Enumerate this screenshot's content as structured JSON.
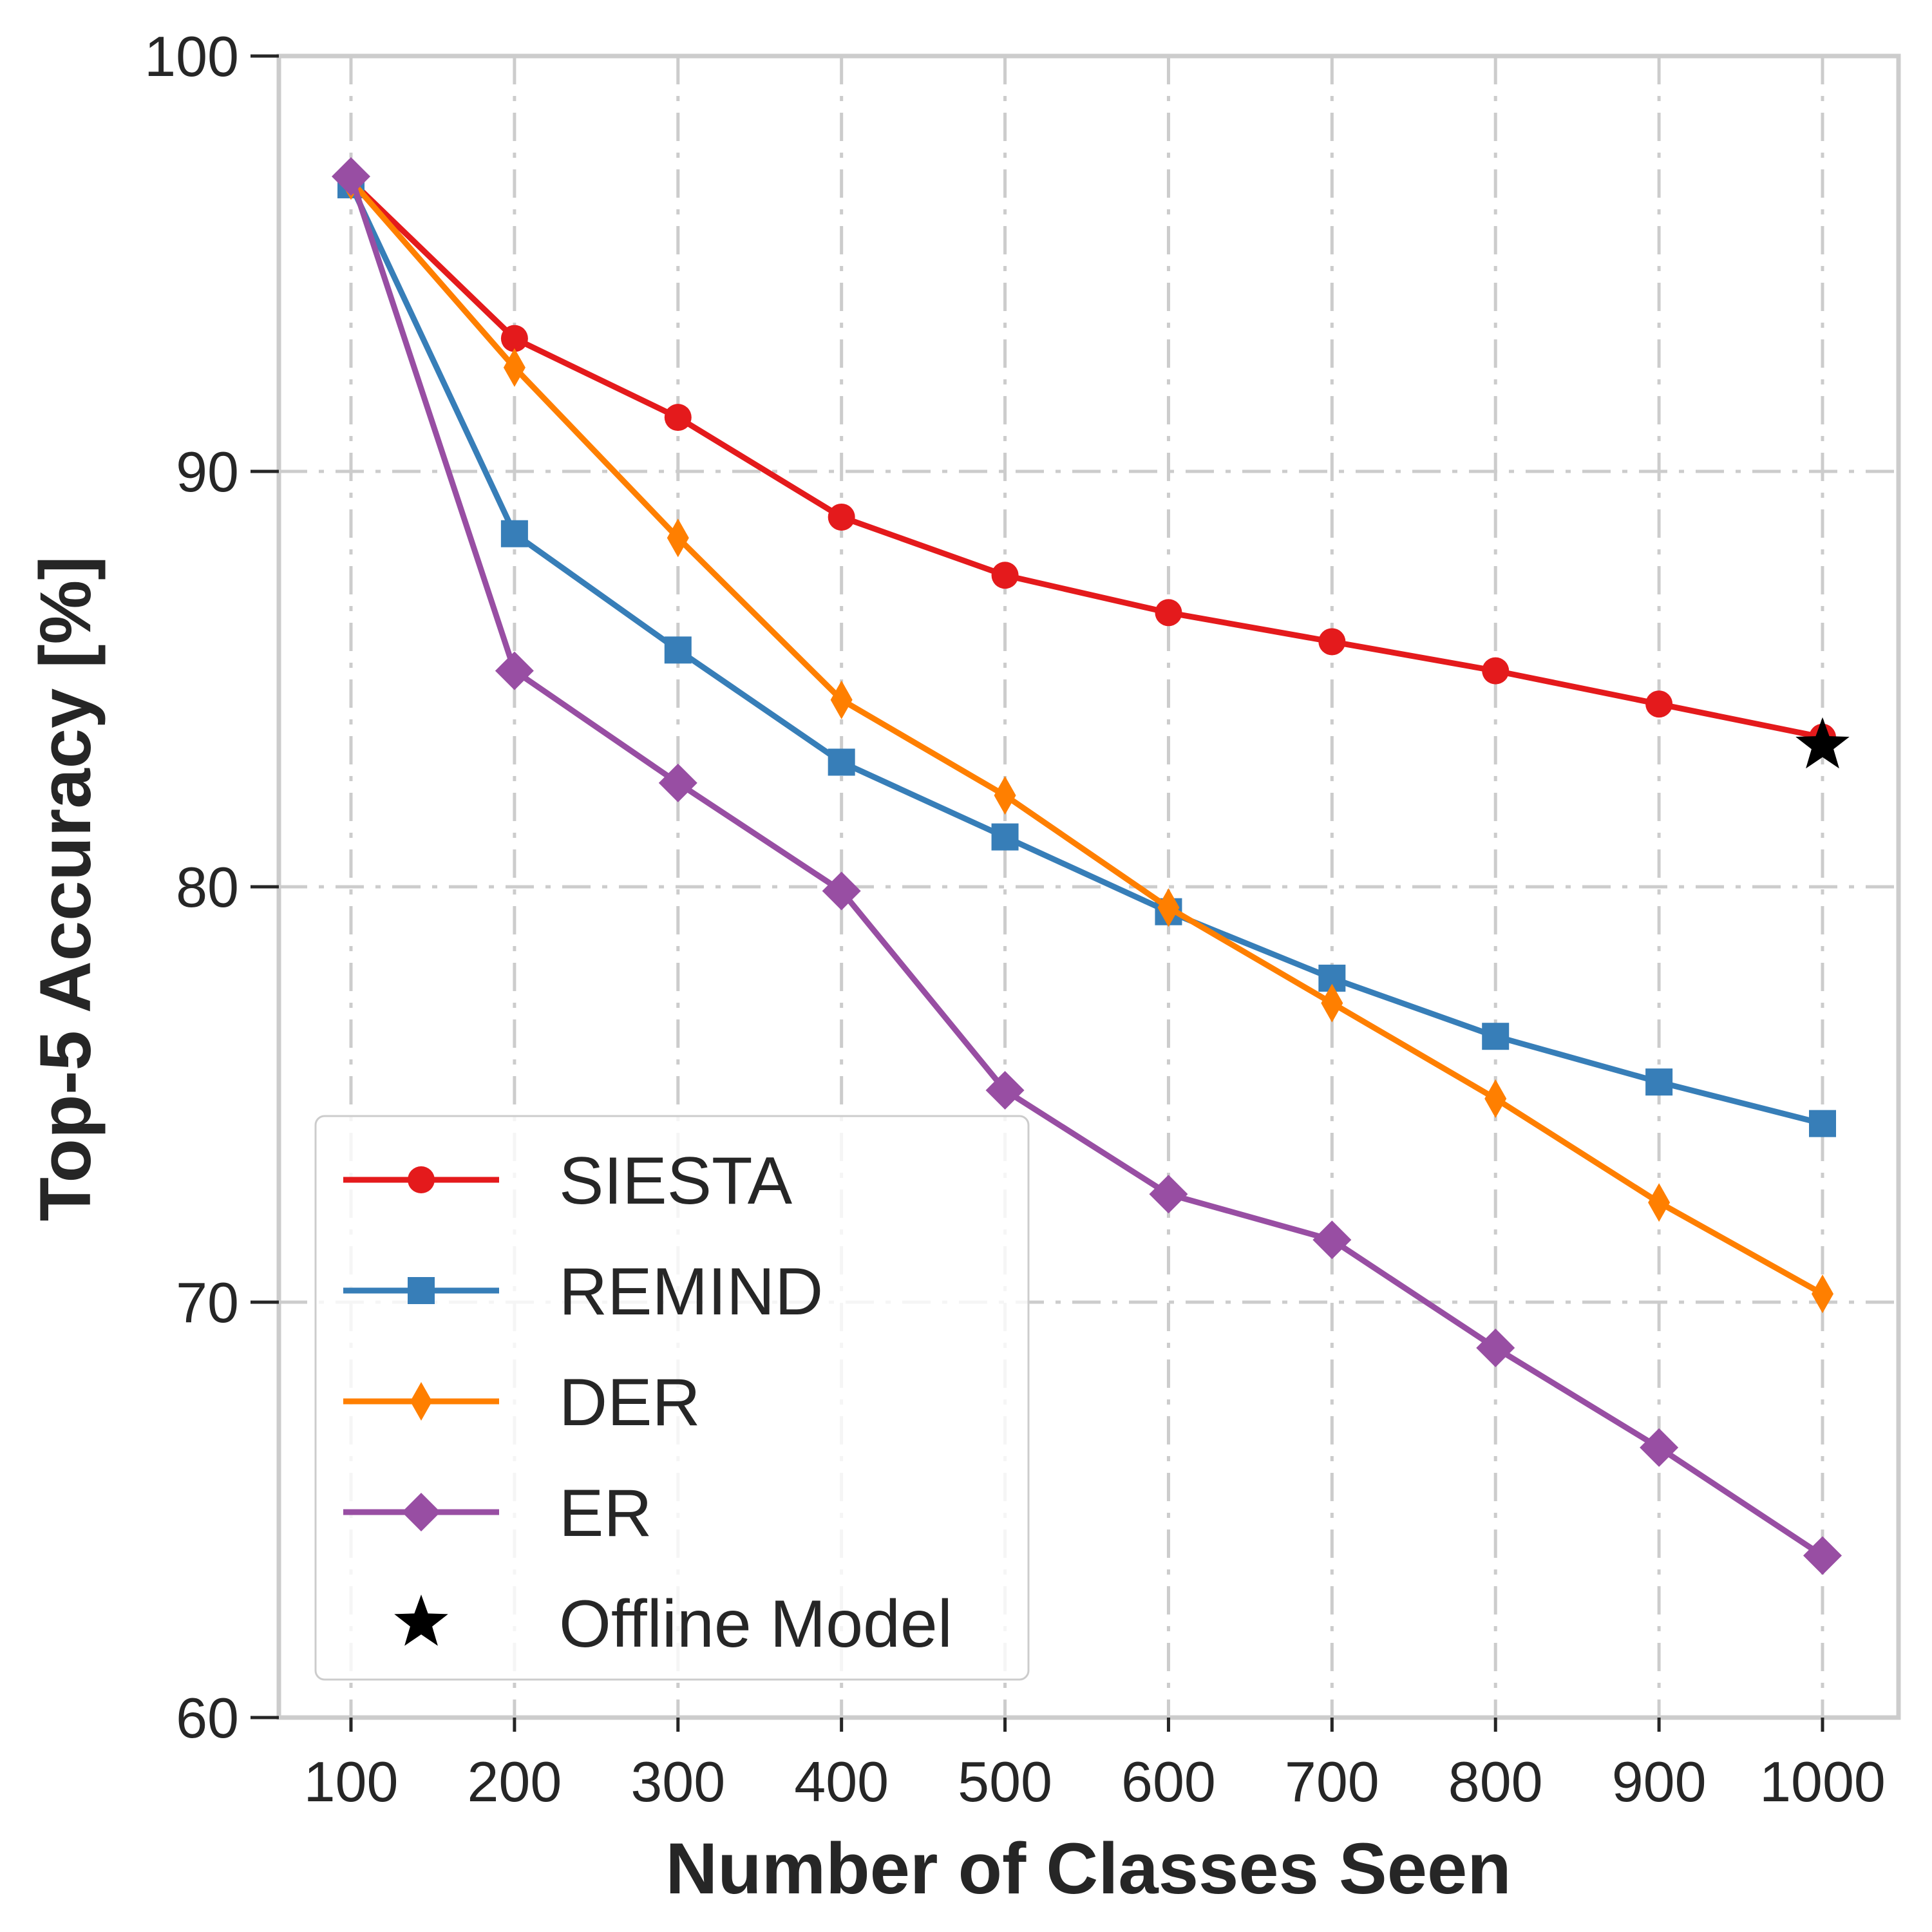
{
  "chart_data": {
    "type": "line",
    "title": "",
    "xlabel": "Number of Classes Seen",
    "ylabel": "Top-5 Accuracy [%]",
    "x": [
      100,
      200,
      300,
      400,
      500,
      600,
      700,
      800,
      900,
      1000
    ],
    "x_tick_labels": [
      "100",
      "200",
      "300",
      "400",
      "500",
      "600",
      "700",
      "800",
      "900",
      "1000"
    ],
    "ylim": [
      60,
      100
    ],
    "y_ticks": [
      60,
      70,
      80,
      90,
      100
    ],
    "y_tick_labels": [
      "60",
      "70",
      "80",
      "90",
      "100"
    ],
    "grid": true,
    "legend_position": "lower-left",
    "series": [
      {
        "name": "SIESTA",
        "marker": "circle",
        "color": "#e41a1c",
        "values": [
          97.0,
          93.2,
          91.3,
          88.9,
          87.5,
          86.6,
          85.9,
          85.2,
          84.4,
          83.6
        ]
      },
      {
        "name": "REMIND",
        "marker": "square",
        "color": "#377eb8",
        "values": [
          96.9,
          88.5,
          85.7,
          83.0,
          81.2,
          79.4,
          77.8,
          76.4,
          75.3,
          74.3
        ]
      },
      {
        "name": "DER",
        "marker": "thin-diamond",
        "color": "#ff7f00",
        "values": [
          97.0,
          92.5,
          88.4,
          84.5,
          82.2,
          79.5,
          77.2,
          74.9,
          72.4,
          70.2
        ]
      },
      {
        "name": "ER",
        "marker": "diamond",
        "color": "#984ea3",
        "values": [
          97.1,
          85.2,
          82.5,
          79.9,
          75.1,
          72.6,
          71.5,
          68.9,
          66.5,
          63.9
        ]
      }
    ],
    "points": [
      {
        "name": "Offline Model",
        "marker": "star",
        "color": "#000000",
        "x": 1000,
        "y": 83.4
      }
    ],
    "colors": {
      "grid": "#cccccc",
      "spine": "#cccccc",
      "text": "#262626"
    }
  }
}
